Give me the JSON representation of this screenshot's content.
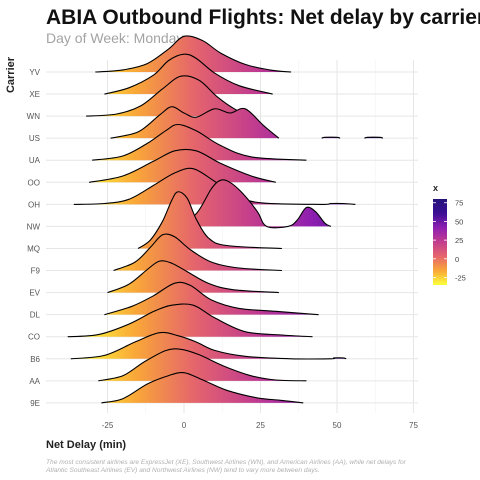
{
  "chart_data": {
    "type": "ridgeline",
    "title": "ABIA Outbound Flights: Net delay by carrier",
    "subtitle": "Day of Week: Monday",
    "xlabel": "Net Delay (min)",
    "ylabel": "Carrier",
    "xlim": [
      -45,
      75
    ],
    "xticks": [
      -25,
      0,
      25,
      50,
      75
    ],
    "caption_lines": [
      "The most consistent airlines are ExpressJet (XE), Southwest Airlines (WN), and American Airlines (AA), while net delays for",
      "Atlantic Southeast Airlines (EV) and Northwest Airlines (NW) tend to vary more between days."
    ],
    "legend": {
      "title": "x",
      "ticks": [
        75,
        50,
        25,
        0,
        -25
      ],
      "range": [
        -35,
        80
      ],
      "colors": [
        "#fcff3a",
        "#f9a738",
        "#e5656c",
        "#c23d8e",
        "#8e1fb0",
        "#3b0f94",
        "#22117a"
      ],
      "position": "right"
    },
    "grid": true,
    "carriers": [
      {
        "name": "YV",
        "points": [
          [
            -29,
            0
          ],
          [
            -20,
            0.05
          ],
          [
            -12,
            0.2
          ],
          [
            -5,
            0.55
          ],
          [
            0,
            0.85
          ],
          [
            6,
            0.75
          ],
          [
            12,
            0.45
          ],
          [
            20,
            0.18
          ],
          [
            28,
            0.05
          ],
          [
            35,
            0
          ]
        ]
      },
      {
        "name": "XE",
        "points": [
          [
            -26,
            0
          ],
          [
            -18,
            0.15
          ],
          [
            -10,
            0.45
          ],
          [
            -5,
            0.8
          ],
          [
            0,
            0.95
          ],
          [
            4,
            0.85
          ],
          [
            10,
            0.5
          ],
          [
            18,
            0.2
          ],
          [
            29,
            0
          ]
        ]
      },
      {
        "name": "WN",
        "points": [
          [
            -32,
            0
          ],
          [
            -22,
            0.05
          ],
          [
            -14,
            0.25
          ],
          [
            -7,
            0.65
          ],
          [
            -1,
            0.95
          ],
          [
            5,
            0.85
          ],
          [
            11,
            0.45
          ],
          [
            17,
            0.15
          ],
          [
            22,
            0
          ]
        ]
      },
      {
        "name": "US",
        "points": [
          [
            -24,
            0
          ],
          [
            -15,
            0.15
          ],
          [
            -8,
            0.55
          ],
          [
            -4,
            0.75
          ],
          [
            0,
            0.6
          ],
          [
            4,
            0.5
          ],
          [
            10,
            0.7
          ],
          [
            15,
            0.6
          ],
          [
            20,
            0.7
          ],
          [
            26,
            0.3
          ],
          [
            31,
            0
          ]
        ]
      },
      {
        "name": "US",
        "points": [
          [
            45,
            0
          ],
          [
            46,
            0.02
          ],
          [
            50,
            0.02
          ],
          [
            51,
            0
          ]
        ]
      },
      {
        "name": "US",
        "points": [
          [
            59,
            0
          ],
          [
            60,
            0.02
          ],
          [
            64,
            0.02
          ],
          [
            65,
            0
          ]
        ]
      },
      {
        "name": "UA",
        "points": [
          [
            -30,
            0
          ],
          [
            -20,
            0.1
          ],
          [
            -12,
            0.4
          ],
          [
            -6,
            0.7
          ],
          [
            -2,
            0.85
          ],
          [
            4,
            0.7
          ],
          [
            12,
            0.35
          ],
          [
            22,
            0.08
          ],
          [
            40,
            0
          ]
        ]
      },
      {
        "name": "OO",
        "points": [
          [
            -31,
            0
          ],
          [
            -20,
            0.15
          ],
          [
            -10,
            0.5
          ],
          [
            -3,
            0.75
          ],
          [
            4,
            0.75
          ],
          [
            12,
            0.45
          ],
          [
            22,
            0.15
          ],
          [
            30,
            0
          ]
        ]
      },
      {
        "name": "OH",
        "points": [
          [
            -36,
            0
          ],
          [
            -26,
            0.02
          ],
          [
            -18,
            0.12
          ],
          [
            -10,
            0.45
          ],
          [
            -3,
            0.75
          ],
          [
            3,
            0.85
          ],
          [
            10,
            0.55
          ],
          [
            18,
            0.18
          ],
          [
            26,
            0.03
          ],
          [
            45,
            0
          ],
          [
            48,
            0.02
          ],
          [
            52,
            0.02
          ],
          [
            56,
            0
          ]
        ]
      },
      {
        "name": "NW",
        "points": [
          [
            -2,
            0
          ],
          [
            4,
            0.3
          ],
          [
            9,
            0.9
          ],
          [
            12,
            1.1
          ],
          [
            15,
            1.05
          ],
          [
            19,
            0.8
          ],
          [
            24,
            0.35
          ],
          [
            27,
            0
          ],
          [
            34,
            0
          ],
          [
            37,
            0.15
          ],
          [
            40,
            0.45
          ],
          [
            43,
            0.35
          ],
          [
            46,
            0.08
          ],
          [
            48,
            0
          ]
        ]
      },
      {
        "name": "MQ",
        "points": [
          [
            -15,
            0
          ],
          [
            -11,
            0.2
          ],
          [
            -7,
            0.65
          ],
          [
            -4,
            1.15
          ],
          [
            -2,
            1.35
          ],
          [
            1,
            1.2
          ],
          [
            4,
            0.7
          ],
          [
            8,
            0.25
          ],
          [
            14,
            0.07
          ],
          [
            32,
            0
          ]
        ]
      },
      {
        "name": "F9",
        "points": [
          [
            -23,
            0
          ],
          [
            -16,
            0.2
          ],
          [
            -11,
            0.55
          ],
          [
            -7,
            0.85
          ],
          [
            -3,
            0.8
          ],
          [
            2,
            0.5
          ],
          [
            9,
            0.2
          ],
          [
            18,
            0.06
          ],
          [
            32,
            0
          ]
        ]
      },
      {
        "name": "EV",
        "points": [
          [
            -25,
            0
          ],
          [
            -18,
            0.2
          ],
          [
            -12,
            0.55
          ],
          [
            -8,
            0.75
          ],
          [
            -4,
            0.7
          ],
          [
            1,
            0.5
          ],
          [
            8,
            0.22
          ],
          [
            16,
            0.07
          ],
          [
            31,
            0
          ]
        ]
      },
      {
        "name": "DL",
        "points": [
          [
            -26,
            0
          ],
          [
            -17,
            0.2
          ],
          [
            -10,
            0.45
          ],
          [
            -3,
            0.75
          ],
          [
            2,
            0.7
          ],
          [
            9,
            0.35
          ],
          [
            18,
            0.15
          ],
          [
            30,
            0.08
          ],
          [
            44,
            0
          ]
        ]
      },
      {
        "name": "CO",
        "points": [
          [
            -38,
            0
          ],
          [
            -28,
            0.05
          ],
          [
            -18,
            0.3
          ],
          [
            -10,
            0.6
          ],
          [
            -4,
            0.75
          ],
          [
            3,
            0.75
          ],
          [
            10,
            0.45
          ],
          [
            20,
            0.12
          ],
          [
            32,
            0.04
          ],
          [
            42,
            0
          ]
        ]
      },
      {
        "name": "B6",
        "points": [
          [
            -37,
            0
          ],
          [
            -26,
            0.08
          ],
          [
            -16,
            0.4
          ],
          [
            -8,
            0.62
          ],
          [
            -2,
            0.55
          ],
          [
            4,
            0.4
          ],
          [
            10,
            0.2
          ],
          [
            20,
            0.06
          ],
          [
            35,
            0
          ],
          [
            48,
            0
          ],
          [
            49,
            0.02
          ],
          [
            52,
            0.02
          ],
          [
            53,
            0
          ]
        ]
      },
      {
        "name": "AA",
        "points": [
          [
            -28,
            0
          ],
          [
            -20,
            0.12
          ],
          [
            -13,
            0.45
          ],
          [
            -6,
            0.72
          ],
          [
            -1,
            0.75
          ],
          [
            5,
            0.62
          ],
          [
            13,
            0.35
          ],
          [
            22,
            0.12
          ],
          [
            30,
            0.02
          ],
          [
            40,
            0
          ]
        ]
      },
      {
        "name": "9E",
        "points": [
          [
            -27,
            0
          ],
          [
            -20,
            0.1
          ],
          [
            -12,
            0.45
          ],
          [
            -5,
            0.65
          ],
          [
            0,
            0.72
          ],
          [
            6,
            0.55
          ],
          [
            14,
            0.3
          ],
          [
            24,
            0.12
          ],
          [
            32,
            0.06
          ],
          [
            39,
            0
          ]
        ]
      }
    ]
  }
}
